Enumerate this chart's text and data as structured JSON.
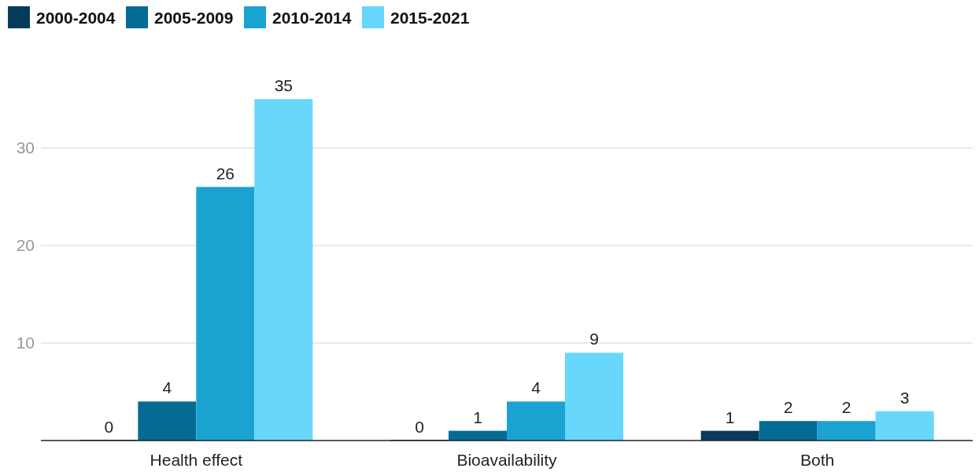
{
  "chart_data": {
    "type": "bar",
    "categories": [
      "Health effect",
      "Bioavailability",
      "Both"
    ],
    "series": [
      {
        "name": "2000-2004",
        "color": "#073b5c",
        "values": [
          0,
          0,
          1
        ]
      },
      {
        "name": "2005-2009",
        "color": "#046c94",
        "values": [
          4,
          1,
          2
        ]
      },
      {
        "name": "2010-2014",
        "color": "#1aa3d1",
        "values": [
          26,
          4,
          2
        ]
      },
      {
        "name": "2015-2021",
        "color": "#67d7fb",
        "values": [
          35,
          9,
          3
        ]
      }
    ],
    "ylim": [
      0,
      35
    ],
    "yticks": [
      {
        "value": 0,
        "label": null
      },
      10,
      20,
      30
    ],
    "grid": "y",
    "data_labels": true,
    "legend": "top left"
  }
}
